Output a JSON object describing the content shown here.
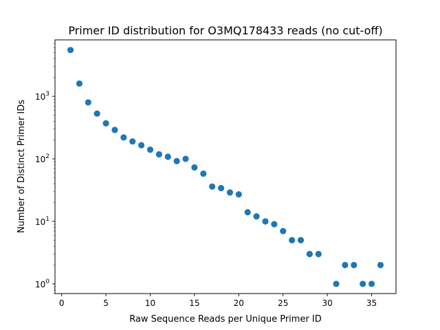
{
  "chart_data": {
    "type": "scatter",
    "title": "Primer ID distribution for O3MQ178433 reads (no cut-off)",
    "xlabel": "Raw Sequence Reads per Unique Primer ID",
    "ylabel": "Number of Distinct Primer IDs",
    "xscale": "linear",
    "yscale": "log",
    "xlim": [
      -0.75,
      37.75
    ],
    "ylim": [
      0.7,
      8000
    ],
    "xticks": [
      0,
      5,
      10,
      15,
      20,
      25,
      30,
      35
    ],
    "yticks": [
      {
        "base": "10",
        "exp": "0",
        "value": 1
      },
      {
        "base": "10",
        "exp": "1",
        "value": 10
      },
      {
        "base": "10",
        "exp": "2",
        "value": 100
      },
      {
        "base": "10",
        "exp": "3",
        "value": 1000
      }
    ],
    "grid": false,
    "marker_color": "#1f77b4",
    "points": [
      {
        "x": 1,
        "y": 5500
      },
      {
        "x": 2,
        "y": 1600
      },
      {
        "x": 3,
        "y": 800
      },
      {
        "x": 4,
        "y": 530
      },
      {
        "x": 5,
        "y": 370
      },
      {
        "x": 6,
        "y": 290
      },
      {
        "x": 7,
        "y": 220
      },
      {
        "x": 8,
        "y": 190
      },
      {
        "x": 9,
        "y": 165
      },
      {
        "x": 10,
        "y": 140
      },
      {
        "x": 11,
        "y": 118
      },
      {
        "x": 12,
        "y": 108
      },
      {
        "x": 13,
        "y": 92
      },
      {
        "x": 14,
        "y": 100
      },
      {
        "x": 15,
        "y": 73
      },
      {
        "x": 16,
        "y": 58
      },
      {
        "x": 17,
        "y": 36
      },
      {
        "x": 18,
        "y": 34
      },
      {
        "x": 19,
        "y": 29
      },
      {
        "x": 20,
        "y": 27
      },
      {
        "x": 21,
        "y": 14
      },
      {
        "x": 22,
        "y": 12
      },
      {
        "x": 23,
        "y": 10
      },
      {
        "x": 24,
        "y": 9
      },
      {
        "x": 25,
        "y": 7
      },
      {
        "x": 26,
        "y": 5
      },
      {
        "x": 27,
        "y": 5
      },
      {
        "x": 28,
        "y": 3
      },
      {
        "x": 29,
        "y": 3
      },
      {
        "x": 31,
        "y": 1
      },
      {
        "x": 32,
        "y": 2
      },
      {
        "x": 33,
        "y": 2
      },
      {
        "x": 34,
        "y": 1
      },
      {
        "x": 35,
        "y": 1
      },
      {
        "x": 36,
        "y": 2
      }
    ]
  }
}
